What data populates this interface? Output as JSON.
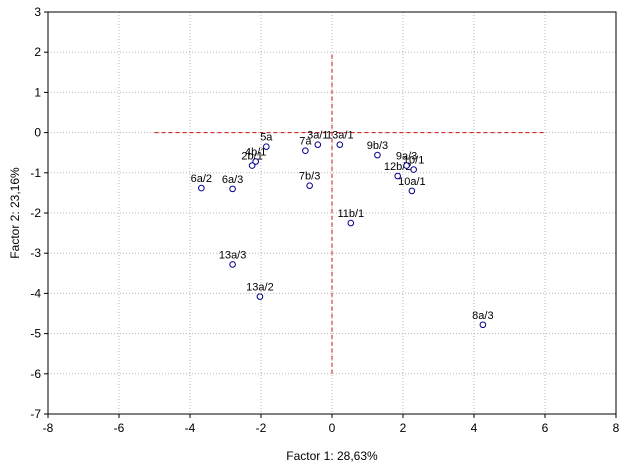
{
  "chart_data": {
    "type": "scatter",
    "xlabel": "Factor 1: 28,63%",
    "ylabel": "Factor 2: 23,16%",
    "xlim": [
      -8,
      8
    ],
    "ylim": [
      -7,
      3
    ],
    "xticks": [
      -8,
      -6,
      -4,
      -2,
      0,
      2,
      4,
      6,
      8
    ],
    "yticks": [
      -7,
      -6,
      -5,
      -4,
      -3,
      -2,
      -1,
      0,
      1,
      2,
      3
    ],
    "tick_label_decimal_separator": ",",
    "grid": true,
    "marker": "open-circle",
    "marker_color": "#00008b",
    "reference_lines": {
      "color": "#d01010",
      "style": "dashed",
      "horizontal": {
        "y": 0,
        "x_from": -5,
        "x_to": 6
      },
      "vertical": {
        "x": 0,
        "y_from": -6,
        "y_to": 2
      }
    },
    "points": [
      {
        "label": "8a/3",
        "x": 4.25,
        "y": -4.78
      },
      {
        "label": "13a/2",
        "x": -2.03,
        "y": -4.08
      },
      {
        "label": "13a/3",
        "x": -2.8,
        "y": -3.28
      },
      {
        "label": "11b/1",
        "x": 0.53,
        "y": -2.25
      },
      {
        "label": "6a/2",
        "x": -3.68,
        "y": -1.38
      },
      {
        "label": "6a/3",
        "x": -2.8,
        "y": -1.4
      },
      {
        "label": "7b/3",
        "x": -0.63,
        "y": -1.32
      },
      {
        "label": "10a/1",
        "x": 2.25,
        "y": -1.45
      },
      {
        "label": "12b/2",
        "x": 1.85,
        "y": -1.08
      },
      {
        "label": "10/1",
        "x": 2.3,
        "y": -0.92
      },
      {
        "label": "9a/3",
        "x": 2.1,
        "y": -0.82
      },
      {
        "label": "9b/3",
        "x": 1.28,
        "y": -0.56
      },
      {
        "label": "4b/1",
        "x": -2.15,
        "y": -0.72
      },
      {
        "label": "2b/1",
        "x": -2.25,
        "y": -0.82
      },
      {
        "label": "13a/1",
        "x": 0.22,
        "y": -0.3
      },
      {
        "label": "5a",
        "x": -1.85,
        "y": -0.35
      },
      {
        "label": "7a",
        "x": -0.75,
        "y": -0.45
      },
      {
        "label": "3a/1",
        "x": -0.4,
        "y": -0.3
      }
    ]
  }
}
